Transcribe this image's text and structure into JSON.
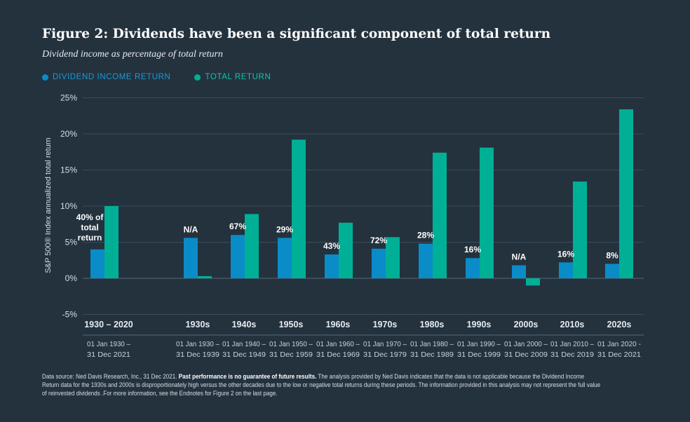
{
  "header": {
    "title": "Figure 2: Dividends have been a significant component of total return",
    "subtitle": "Dividend income as percentage of total return"
  },
  "legend": {
    "dividend_label": "DIVIDEND INCOME RETURN",
    "total_label": "TOTAL RETURN"
  },
  "footnote": {
    "lead": "Data source: Ned Davis Research, Inc., 31 Dec 2021. ",
    "bold": "Past performance is no guarantee of future results.",
    "rest": " The analysis provided by Ned Davis indicates that the data is not applicable because the Dividend Income Return data for the 1930s and 2000s is disproportionately high versus the other decades due to the low or negative total returns during these periods. The information provided in this analysis may not represent the full value of reinvested dividends .For more information, see the Endnotes for Figure 2 on the last page."
  },
  "chart_data": {
    "type": "bar",
    "ylabel": "S&P 500® Index annualized total return",
    "ylim": [
      -5,
      25
    ],
    "yticks": [
      -5,
      0,
      5,
      10,
      15,
      20,
      25
    ],
    "ytick_labels": [
      "-5%",
      "0%",
      "5%",
      "10%",
      "15%",
      "20%",
      "25%"
    ],
    "grid": true,
    "legend_position": "top-left",
    "colors": {
      "dividend": "#0a8cc8",
      "total": "#00b096",
      "background": "#24323e",
      "grid": "#3b4c59"
    },
    "categories": [
      "1930 – 2020",
      "1930s",
      "1940s",
      "1950s",
      "1960s",
      "1970s",
      "1980s",
      "1990s",
      "2000s",
      "2010s",
      "2020s"
    ],
    "date_ranges": [
      [
        "01 Jan 1930 –",
        "31 Dec 2021"
      ],
      [
        "01 Jan 1930 –",
        "31 Dec 1939"
      ],
      [
        "01 Jan 1940 –",
        "31 Dec 1949"
      ],
      [
        "01 Jan 1950 –",
        "31 Dec 1959"
      ],
      [
        "01 Jan 1960 –",
        "31 Dec 1969"
      ],
      [
        "01 Jan 1970 –",
        "31 Dec 1979"
      ],
      [
        "01 Jan 1980 –",
        "31 Dec 1989"
      ],
      [
        "01 Jan 1990 –",
        "31 Dec 1999"
      ],
      [
        "01 Jan 2000 –",
        "31 Dec 2009"
      ],
      [
        "01 Jan 2010 –",
        "31 Dec 2019"
      ],
      [
        "01 Jan 2020 -",
        "31 Dec 2021"
      ]
    ],
    "series": [
      {
        "name": "DIVIDEND INCOME RETURN",
        "values": [
          4.0,
          5.6,
          6.0,
          5.6,
          3.3,
          4.1,
          4.8,
          2.8,
          1.8,
          2.2,
          2.0
        ]
      },
      {
        "name": "TOTAL RETURN",
        "values": [
          10.0,
          0.3,
          8.9,
          19.2,
          7.7,
          5.7,
          17.4,
          18.1,
          -1.0,
          13.4,
          23.4
        ]
      }
    ],
    "data_labels": [
      [
        "40% of",
        "total",
        "return"
      ],
      [
        "N/A"
      ],
      [
        "67%"
      ],
      [
        "29%"
      ],
      [
        "43%"
      ],
      [
        "72%"
      ],
      [
        "28%"
      ],
      [
        "16%"
      ],
      [
        "N/A"
      ],
      [
        "16%"
      ],
      [
        "8%"
      ]
    ]
  }
}
